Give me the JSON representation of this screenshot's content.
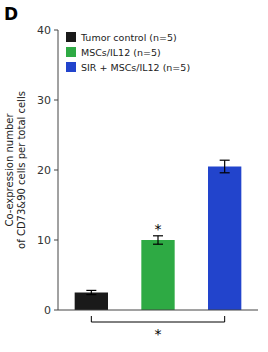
{
  "chart_data": {
    "type": "bar",
    "title": "D",
    "y_label": "Co-expression number\nof CD73&90 cells per total cells",
    "categories": [
      "Tumor control (n=5)",
      "MSCs/IL12 (n=5)",
      "SIR + MSCs/IL12 (n=5)"
    ],
    "values": [
      2.5,
      10.0,
      20.5
    ],
    "errors": [
      0.3,
      0.6,
      0.9
    ],
    "colors": [
      "#1a1a1a",
      "#2eaa44",
      "#2244cc"
    ],
    "ylim": [
      0,
      40
    ],
    "yticks": [
      0,
      10,
      20,
      30,
      40
    ],
    "grid": false,
    "legend": "upper left",
    "tick_labels": "y",
    "annotations": [
      {
        "text": "*",
        "category": "MSCs/IL12 (n=5)"
      },
      {
        "text": "*",
        "between": [
          "Tumor control (n=5)",
          "SIR + MSCs/IL12 (n=5)"
        ]
      }
    ]
  }
}
